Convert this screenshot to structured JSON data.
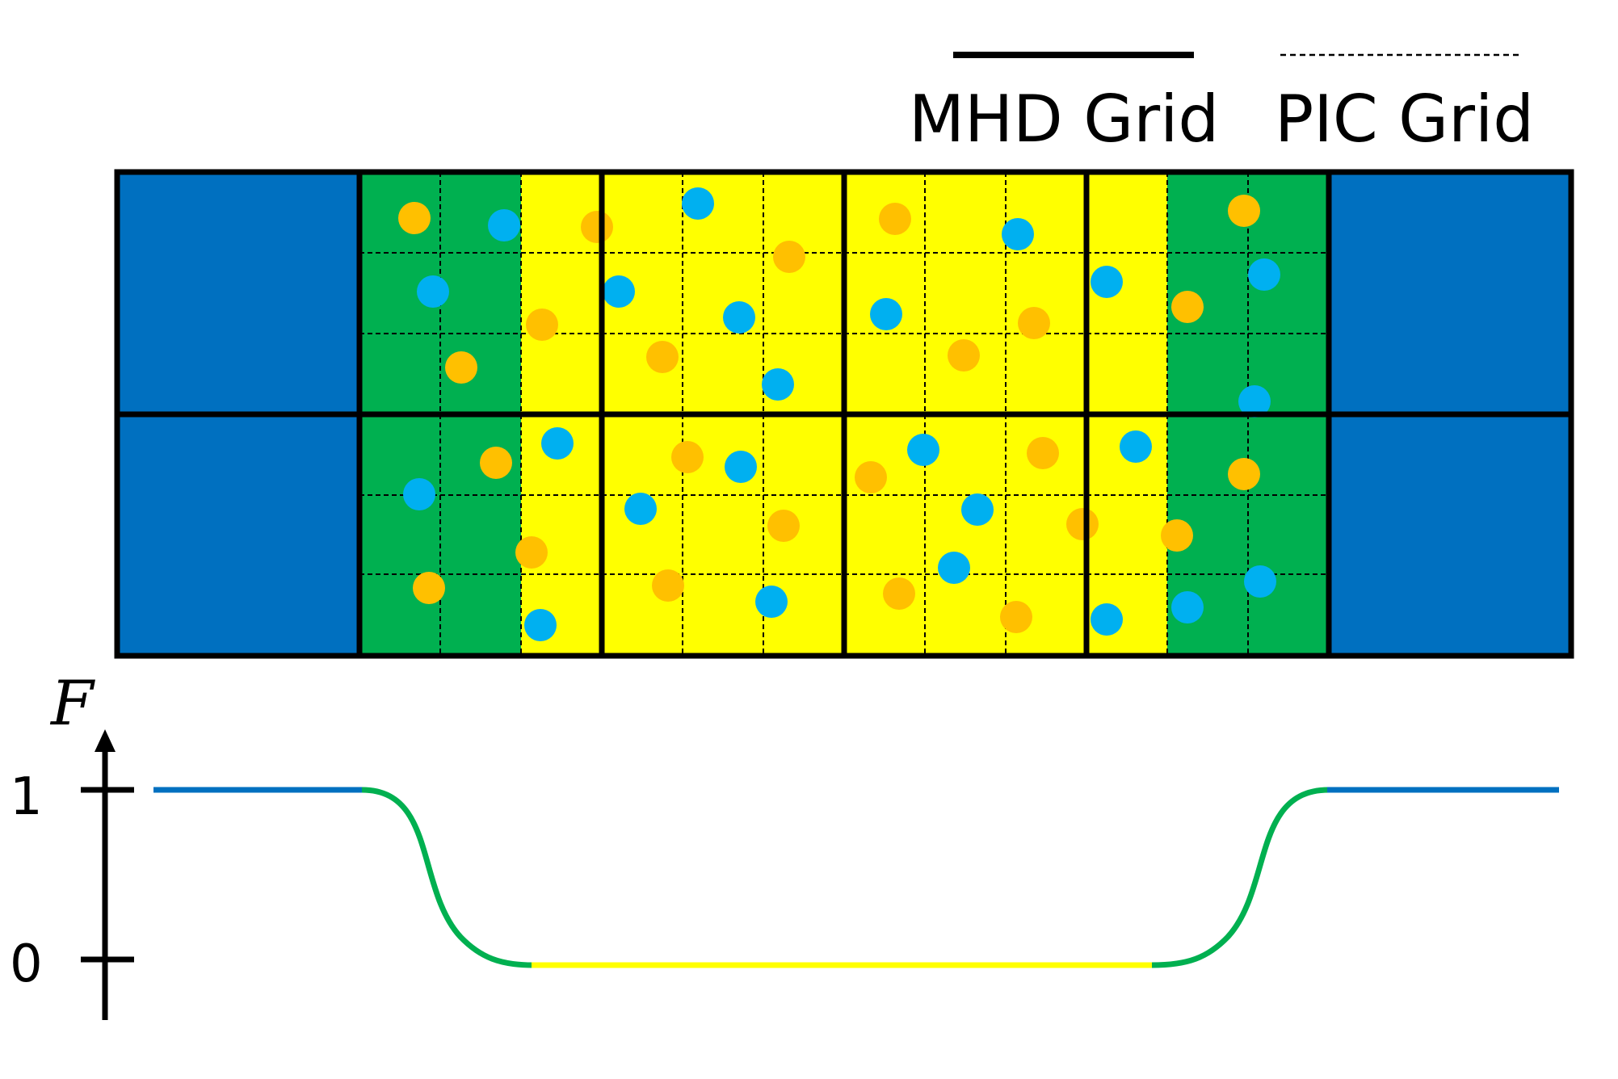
{
  "legend": {
    "mhd_label": "MHD Grid",
    "pic_label": "PIC Grid"
  },
  "axis": {
    "label": "F",
    "tick_high": "1",
    "tick_low": "0"
  },
  "colors": {
    "mhd_region": "#0070c0",
    "transition_region": "#00b050",
    "pic_region": "#ffff00",
    "ion_particle": "#ffc000",
    "electron_particle": "#00b0f0",
    "curve_mhd": "#0070c0",
    "curve_transition": "#00b050",
    "curve_pic": "#ffff00"
  },
  "regions": [
    "mhd",
    "transition",
    "pic",
    "transition",
    "mhd"
  ],
  "function_values": {
    "mhd": 1,
    "pic": 0
  }
}
